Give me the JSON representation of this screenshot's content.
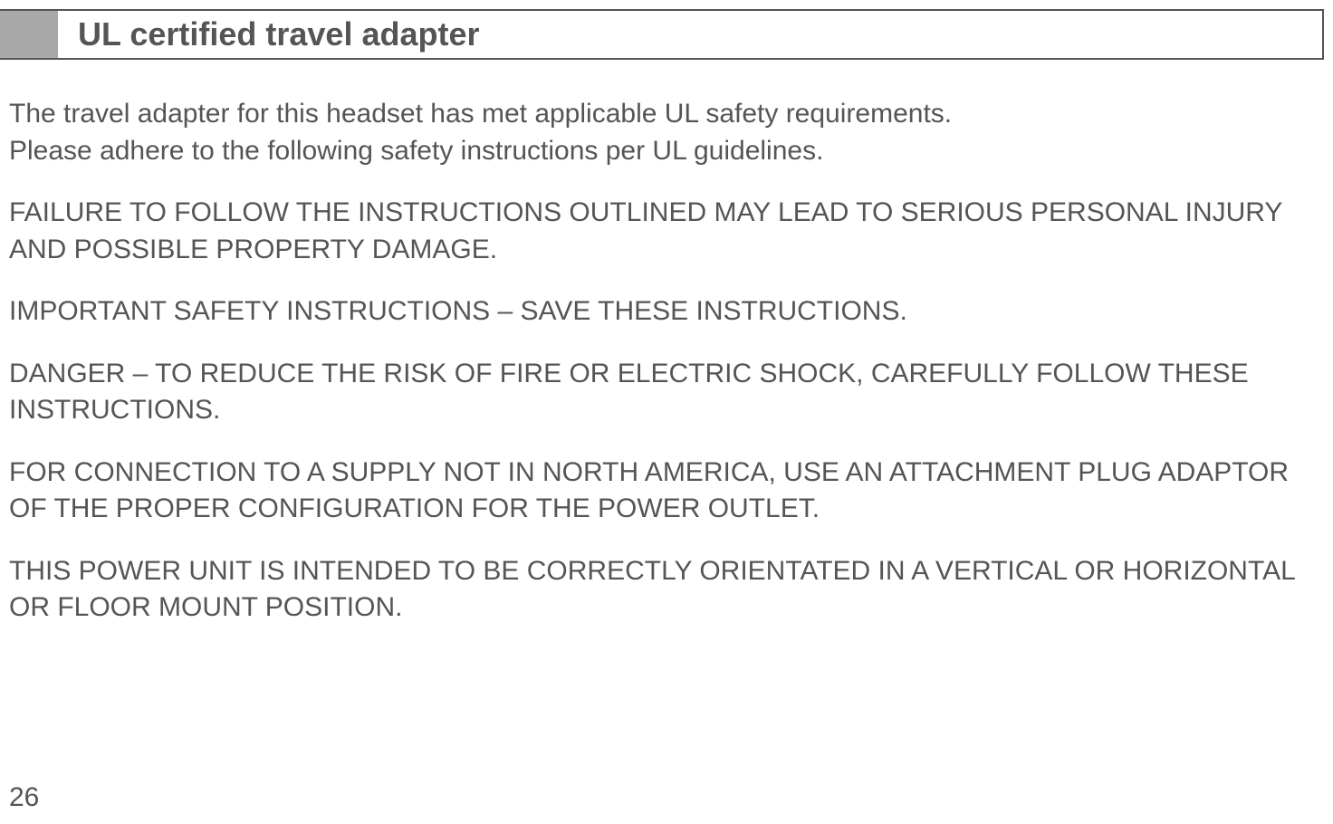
{
  "header": {
    "title": "UL certified travel adapter"
  },
  "intro_line1": "The travel adapter for this headset has met applicable UL safety requirements.",
  "intro_line2": "Please adhere to the following safety instructions per UL guidelines.",
  "paragraphs": [
    "FAILURE TO FOLLOW THE INSTRUCTIONS OUTLINED MAY LEAD TO SERIOUS PERSONAL INJURY AND POSSIBLE PROPERTY DAMAGE.",
    "IMPORTANT SAFETY INSTRUCTIONS – SAVE THESE INSTRUCTIONS.",
    "DANGER – TO REDUCE THE RISK OF FIRE OR ELECTRIC SHOCK, CAREFULLY FOLLOW THESE INSTRUCTIONS.",
    "FOR CONNECTION TO A SUPPLY NOT IN NORTH AMERICA, USE AN ATTACHMENT PLUG ADAPTOR OF THE PROPER CONFIGURATION FOR THE POWER OUTLET.",
    "THIS POWER UNIT IS INTENDED TO BE CORRECTLY ORIENTATED IN A VERTICAL OR HORIZONTAL OR FLOOR MOUNT POSITION."
  ],
  "page_number": "26",
  "colors": {
    "text": "#555555",
    "header_block": "#a9a9a9",
    "border": "#555555",
    "background": "#ffffff"
  },
  "typography": {
    "title_fontsize": 36,
    "body_fontsize": 30,
    "title_weight": "bold"
  }
}
